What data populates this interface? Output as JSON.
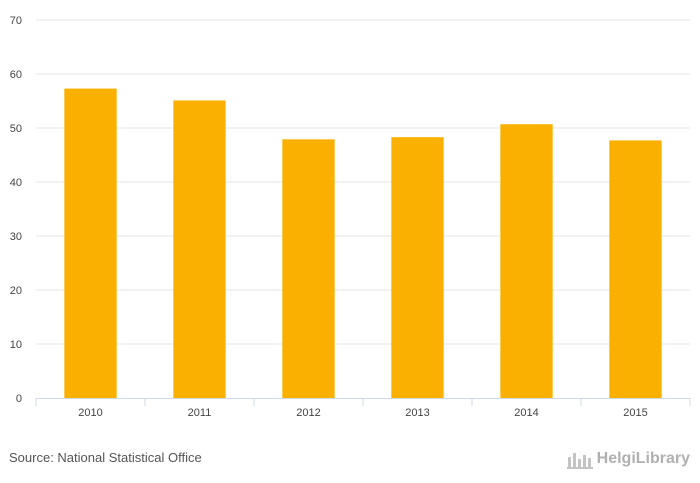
{
  "chart_data": {
    "type": "bar",
    "categories": [
      "2010",
      "2011",
      "2012",
      "2013",
      "2014",
      "2015"
    ],
    "values": [
      57.3,
      55.1,
      47.9,
      48.3,
      50.7,
      47.7
    ],
    "title": "",
    "xlabel": "",
    "ylabel": "",
    "ylim": [
      0,
      70
    ],
    "yticks": [
      0,
      10,
      20,
      30,
      40,
      50,
      60,
      70
    ],
    "grid": true,
    "bar_color": "#f9b000"
  },
  "footer": {
    "source": "Source: National Statistical Office",
    "brand": "HelgiLibrary"
  },
  "icons": {
    "brand_icon": "helgi-library-logo-icon"
  }
}
